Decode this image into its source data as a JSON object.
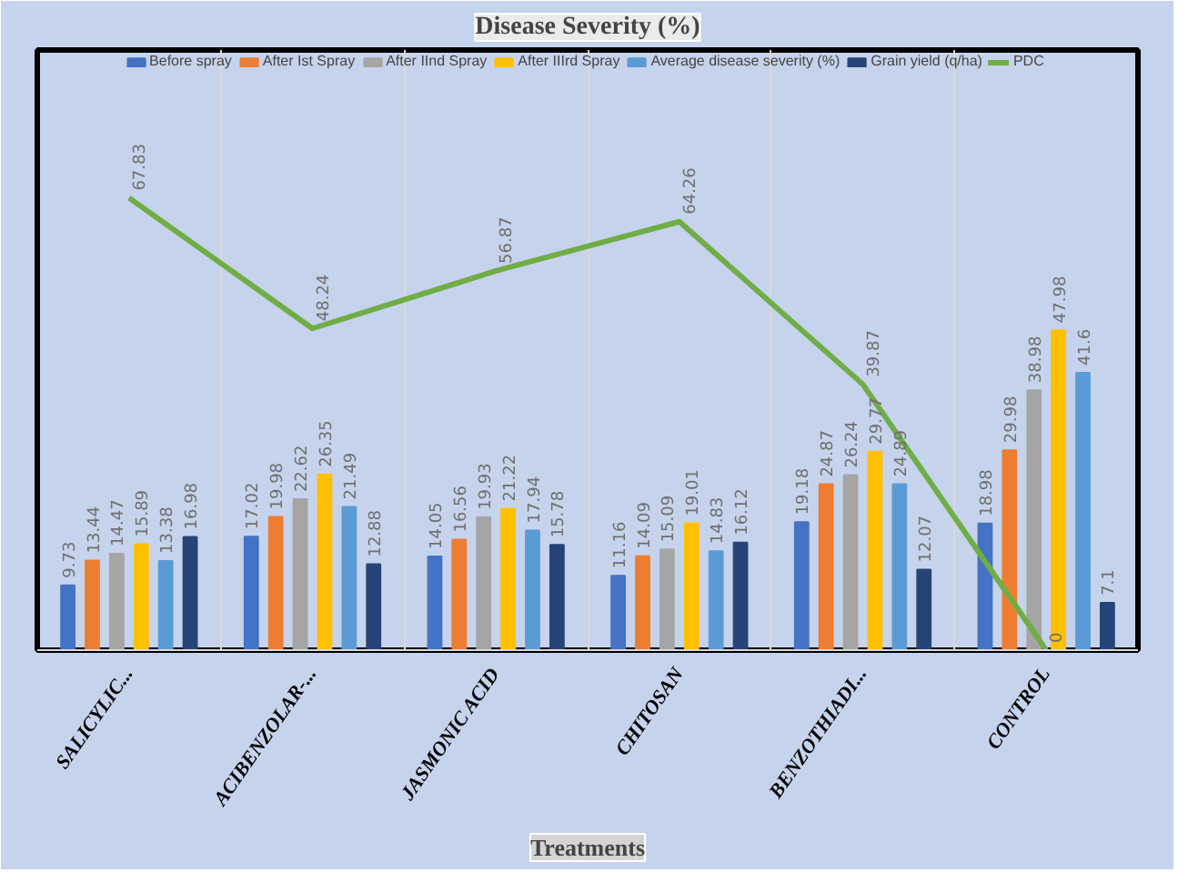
{
  "chart_data": {
    "type": "bar",
    "title": "Disease Severity (%)",
    "xlabel": "Treatments",
    "categories": [
      "SALICYLIC...",
      "ACIBENZOLAR-...",
      "JASMONIC ACID",
      "CHITOSAN",
      "BENZOTHIADI...",
      "CONTROL"
    ],
    "series": [
      {
        "name": "Before spray",
        "color": "#4472c4",
        "values": [
          9.73,
          17.02,
          14.05,
          11.16,
          19.18,
          18.98
        ]
      },
      {
        "name": "After Ist Spray",
        "color": "#ed7d31",
        "values": [
          13.44,
          19.98,
          16.56,
          14.09,
          24.87,
          29.98
        ]
      },
      {
        "name": "After IInd Spray",
        "color": "#a5a5a5",
        "values": [
          14.47,
          22.62,
          19.93,
          15.09,
          26.24,
          38.98
        ]
      },
      {
        "name": "After IIIrd Spray",
        "color": "#ffc000",
        "values": [
          15.89,
          26.35,
          21.22,
          19.01,
          29.77,
          47.98
        ]
      },
      {
        "name": "Average disease severity (%)",
        "color": "#5b9bd5",
        "values": [
          13.38,
          21.49,
          17.94,
          14.83,
          24.89,
          41.6
        ]
      },
      {
        "name": "Grain yield (q/ha)",
        "color": "#264478",
        "values": [
          16.98,
          12.88,
          15.78,
          16.12,
          12.07,
          7.1
        ]
      },
      {
        "name": "PDC",
        "color": "#70ad47",
        "type": "line",
        "values": [
          67.83,
          48.24,
          56.87,
          64.26,
          39.87,
          0
        ]
      }
    ],
    "ylim": [
      0,
      90
    ],
    "tick_labels": "x",
    "data_labels": true,
    "grid": "x",
    "legend": "top",
    "marker": "none",
    "line_style": "solid"
  }
}
